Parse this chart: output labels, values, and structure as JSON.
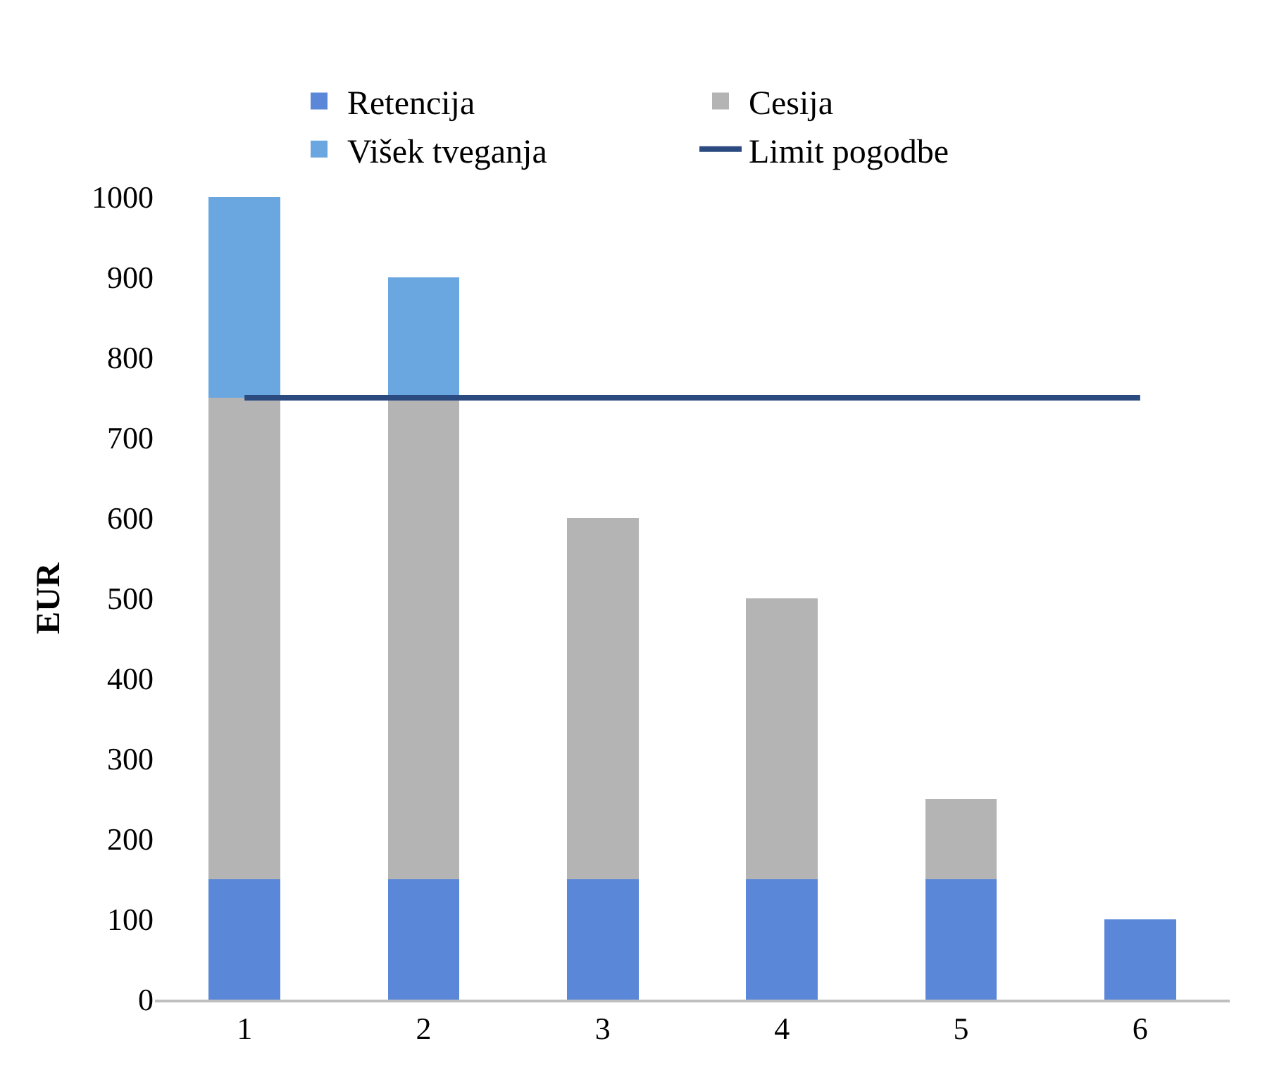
{
  "chart_data": {
    "type": "bar",
    "stacked": true,
    "ylabel": "EUR",
    "categories": [
      "1",
      "2",
      "3",
      "4",
      "5",
      "6"
    ],
    "series": [
      {
        "name": "Retencija",
        "color": "#5b87d8",
        "values": [
          150,
          150,
          150,
          150,
          150,
          100
        ]
      },
      {
        "name": "Cesija",
        "color": "#b4b4b4",
        "values": [
          600,
          600,
          450,
          350,
          100,
          0
        ]
      },
      {
        "name": "Višek tveganja",
        "color": "#6aa6e0",
        "values": [
          250,
          150,
          0,
          0,
          0,
          0
        ]
      },
      {
        "name": "Limit pogodbe",
        "type": "line",
        "color": "#2a4a80",
        "values": [
          750,
          750,
          750,
          750,
          750,
          750
        ]
      }
    ],
    "ylim": [
      0,
      1000
    ],
    "yticks": [
      0,
      100,
      200,
      300,
      400,
      500,
      600,
      700,
      800,
      900,
      1000
    ],
    "legend": "top",
    "marker": "none"
  }
}
